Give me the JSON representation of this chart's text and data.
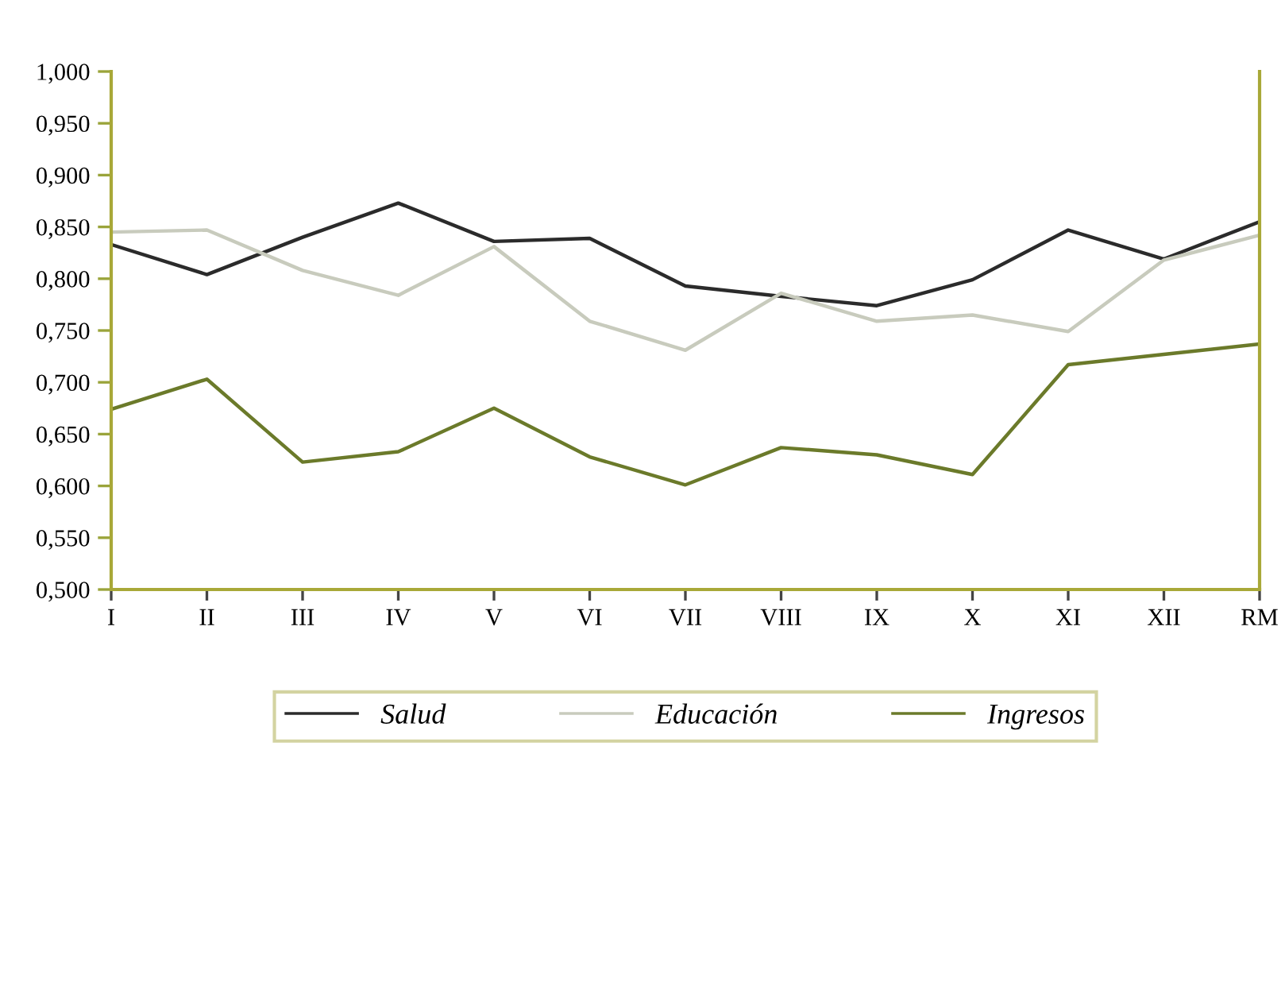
{
  "chart_data": {
    "type": "line",
    "categories": [
      "I",
      "II",
      "III",
      "IV",
      "V",
      "VI",
      "VII",
      "VIII",
      "IX",
      "X",
      "XI",
      "XII",
      "RM"
    ],
    "series": [
      {
        "name": "Salud",
        "color": "#2b2b2b",
        "values": [
          0.833,
          0.804,
          0.84,
          0.873,
          0.836,
          0.839,
          0.793,
          0.783,
          0.774,
          0.799,
          0.847,
          0.819,
          0.855
        ]
      },
      {
        "name": "Educación",
        "color": "#c8cbbd",
        "values": [
          0.845,
          0.847,
          0.808,
          0.784,
          0.831,
          0.759,
          0.731,
          0.786,
          0.759,
          0.765,
          0.749,
          0.818,
          0.842
        ]
      },
      {
        "name": "Ingresos",
        "color": "#6b7a2a",
        "values": [
          0.674,
          0.703,
          0.623,
          0.633,
          0.675,
          0.628,
          0.601,
          0.637,
          0.63,
          0.611,
          0.717,
          0.727,
          0.737
        ]
      }
    ],
    "ylim": [
      0.5,
      1.0
    ],
    "yticks": [
      {
        "value": 0.5,
        "label": "0,500"
      },
      {
        "value": 0.55,
        "label": "0,550"
      },
      {
        "value": 0.6,
        "label": "0,600"
      },
      {
        "value": 0.65,
        "label": "0,650"
      },
      {
        "value": 0.7,
        "label": "0,700"
      },
      {
        "value": 0.75,
        "label": "0,750"
      },
      {
        "value": 0.8,
        "label": "0,800"
      },
      {
        "value": 0.85,
        "label": "0,850"
      },
      {
        "value": 0.9,
        "label": "0,900"
      },
      {
        "value": 0.95,
        "label": "0,950"
      },
      {
        "value": 1.0,
        "label": "1,000"
      }
    ],
    "grid": false,
    "legend": "bottom",
    "marker": "none",
    "line_style": "solid"
  }
}
